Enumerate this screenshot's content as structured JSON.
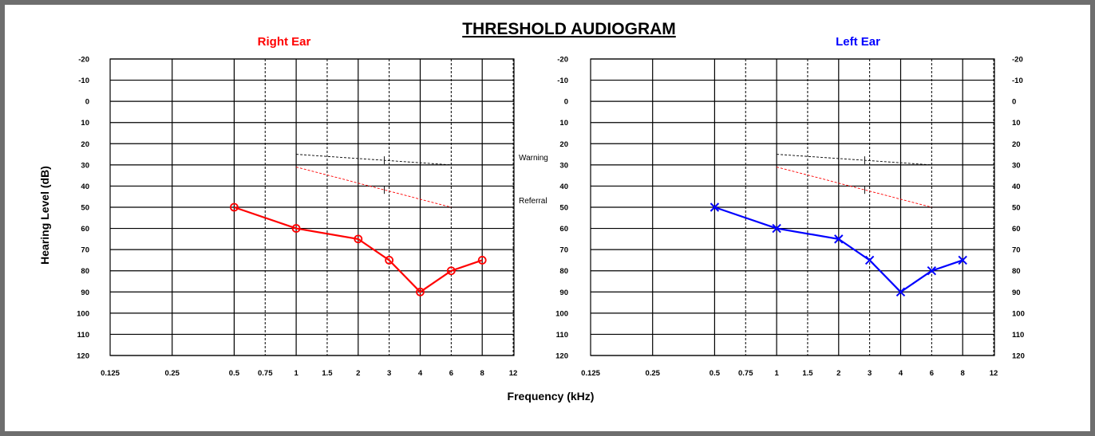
{
  "title": "THRESHOLD AUDIOGRAM",
  "colors": {
    "right": "#ff0000",
    "left": "#0000ff",
    "frame": "#6e6e6e",
    "grid": "#000000"
  },
  "chart_data": [
    {
      "type": "line",
      "title": "Right Ear",
      "xlabel": "Frequency (kHz)",
      "ylabel": "Hearing Level (dB)",
      "x_scale": "log",
      "y_inverted": true,
      "ylim": [
        -20,
        120
      ],
      "x_ticks": [
        "0.125",
        "0.25",
        "0.5",
        "0.75",
        "1",
        "1.5",
        "2",
        "3",
        "4",
        "6",
        "8",
        "12"
      ],
      "y_ticks": [
        "-20",
        "-10",
        "0",
        "10",
        "20",
        "30",
        "40",
        "50",
        "60",
        "70",
        "80",
        "90",
        "100",
        "110",
        "120"
      ],
      "grid": true,
      "marker": "circle",
      "color": "#ff0000",
      "series": [
        {
          "x": [
            0.5,
            1,
            2,
            3,
            4,
            6,
            8
          ],
          "y": [
            50,
            60,
            65,
            75,
            90,
            80,
            75
          ]
        }
      ],
      "reference_lines": [
        {
          "name": "Warning",
          "x": [
            1,
            6
          ],
          "y": [
            25,
            30
          ]
        },
        {
          "name": "Referral",
          "x": [
            1,
            6
          ],
          "y": [
            31,
            50
          ]
        }
      ]
    },
    {
      "type": "line",
      "title": "Left Ear",
      "xlabel": "Frequency (kHz)",
      "ylabel": "Hearing Level (dB)",
      "x_scale": "log",
      "y_inverted": true,
      "ylim": [
        -20,
        120
      ],
      "x_ticks": [
        "0.125",
        "0.25",
        "0.5",
        "0.75",
        "1",
        "1.5",
        "2",
        "3",
        "4",
        "6",
        "8",
        "12"
      ],
      "y_ticks": [
        "-20",
        "-10",
        "0",
        "10",
        "20",
        "30",
        "40",
        "50",
        "60",
        "70",
        "80",
        "90",
        "100",
        "110",
        "120"
      ],
      "grid": true,
      "marker": "x",
      "color": "#0000ff",
      "series": [
        {
          "x": [
            0.5,
            1,
            2,
            3,
            4,
            6,
            8
          ],
          "y": [
            50,
            60,
            65,
            75,
            90,
            80,
            75
          ]
        }
      ],
      "reference_lines": [
        {
          "name": "",
          "x": [
            1,
            6
          ],
          "y": [
            25,
            30
          ]
        },
        {
          "name": "",
          "x": [
            1,
            6
          ],
          "y": [
            31,
            50
          ]
        }
      ]
    }
  ]
}
